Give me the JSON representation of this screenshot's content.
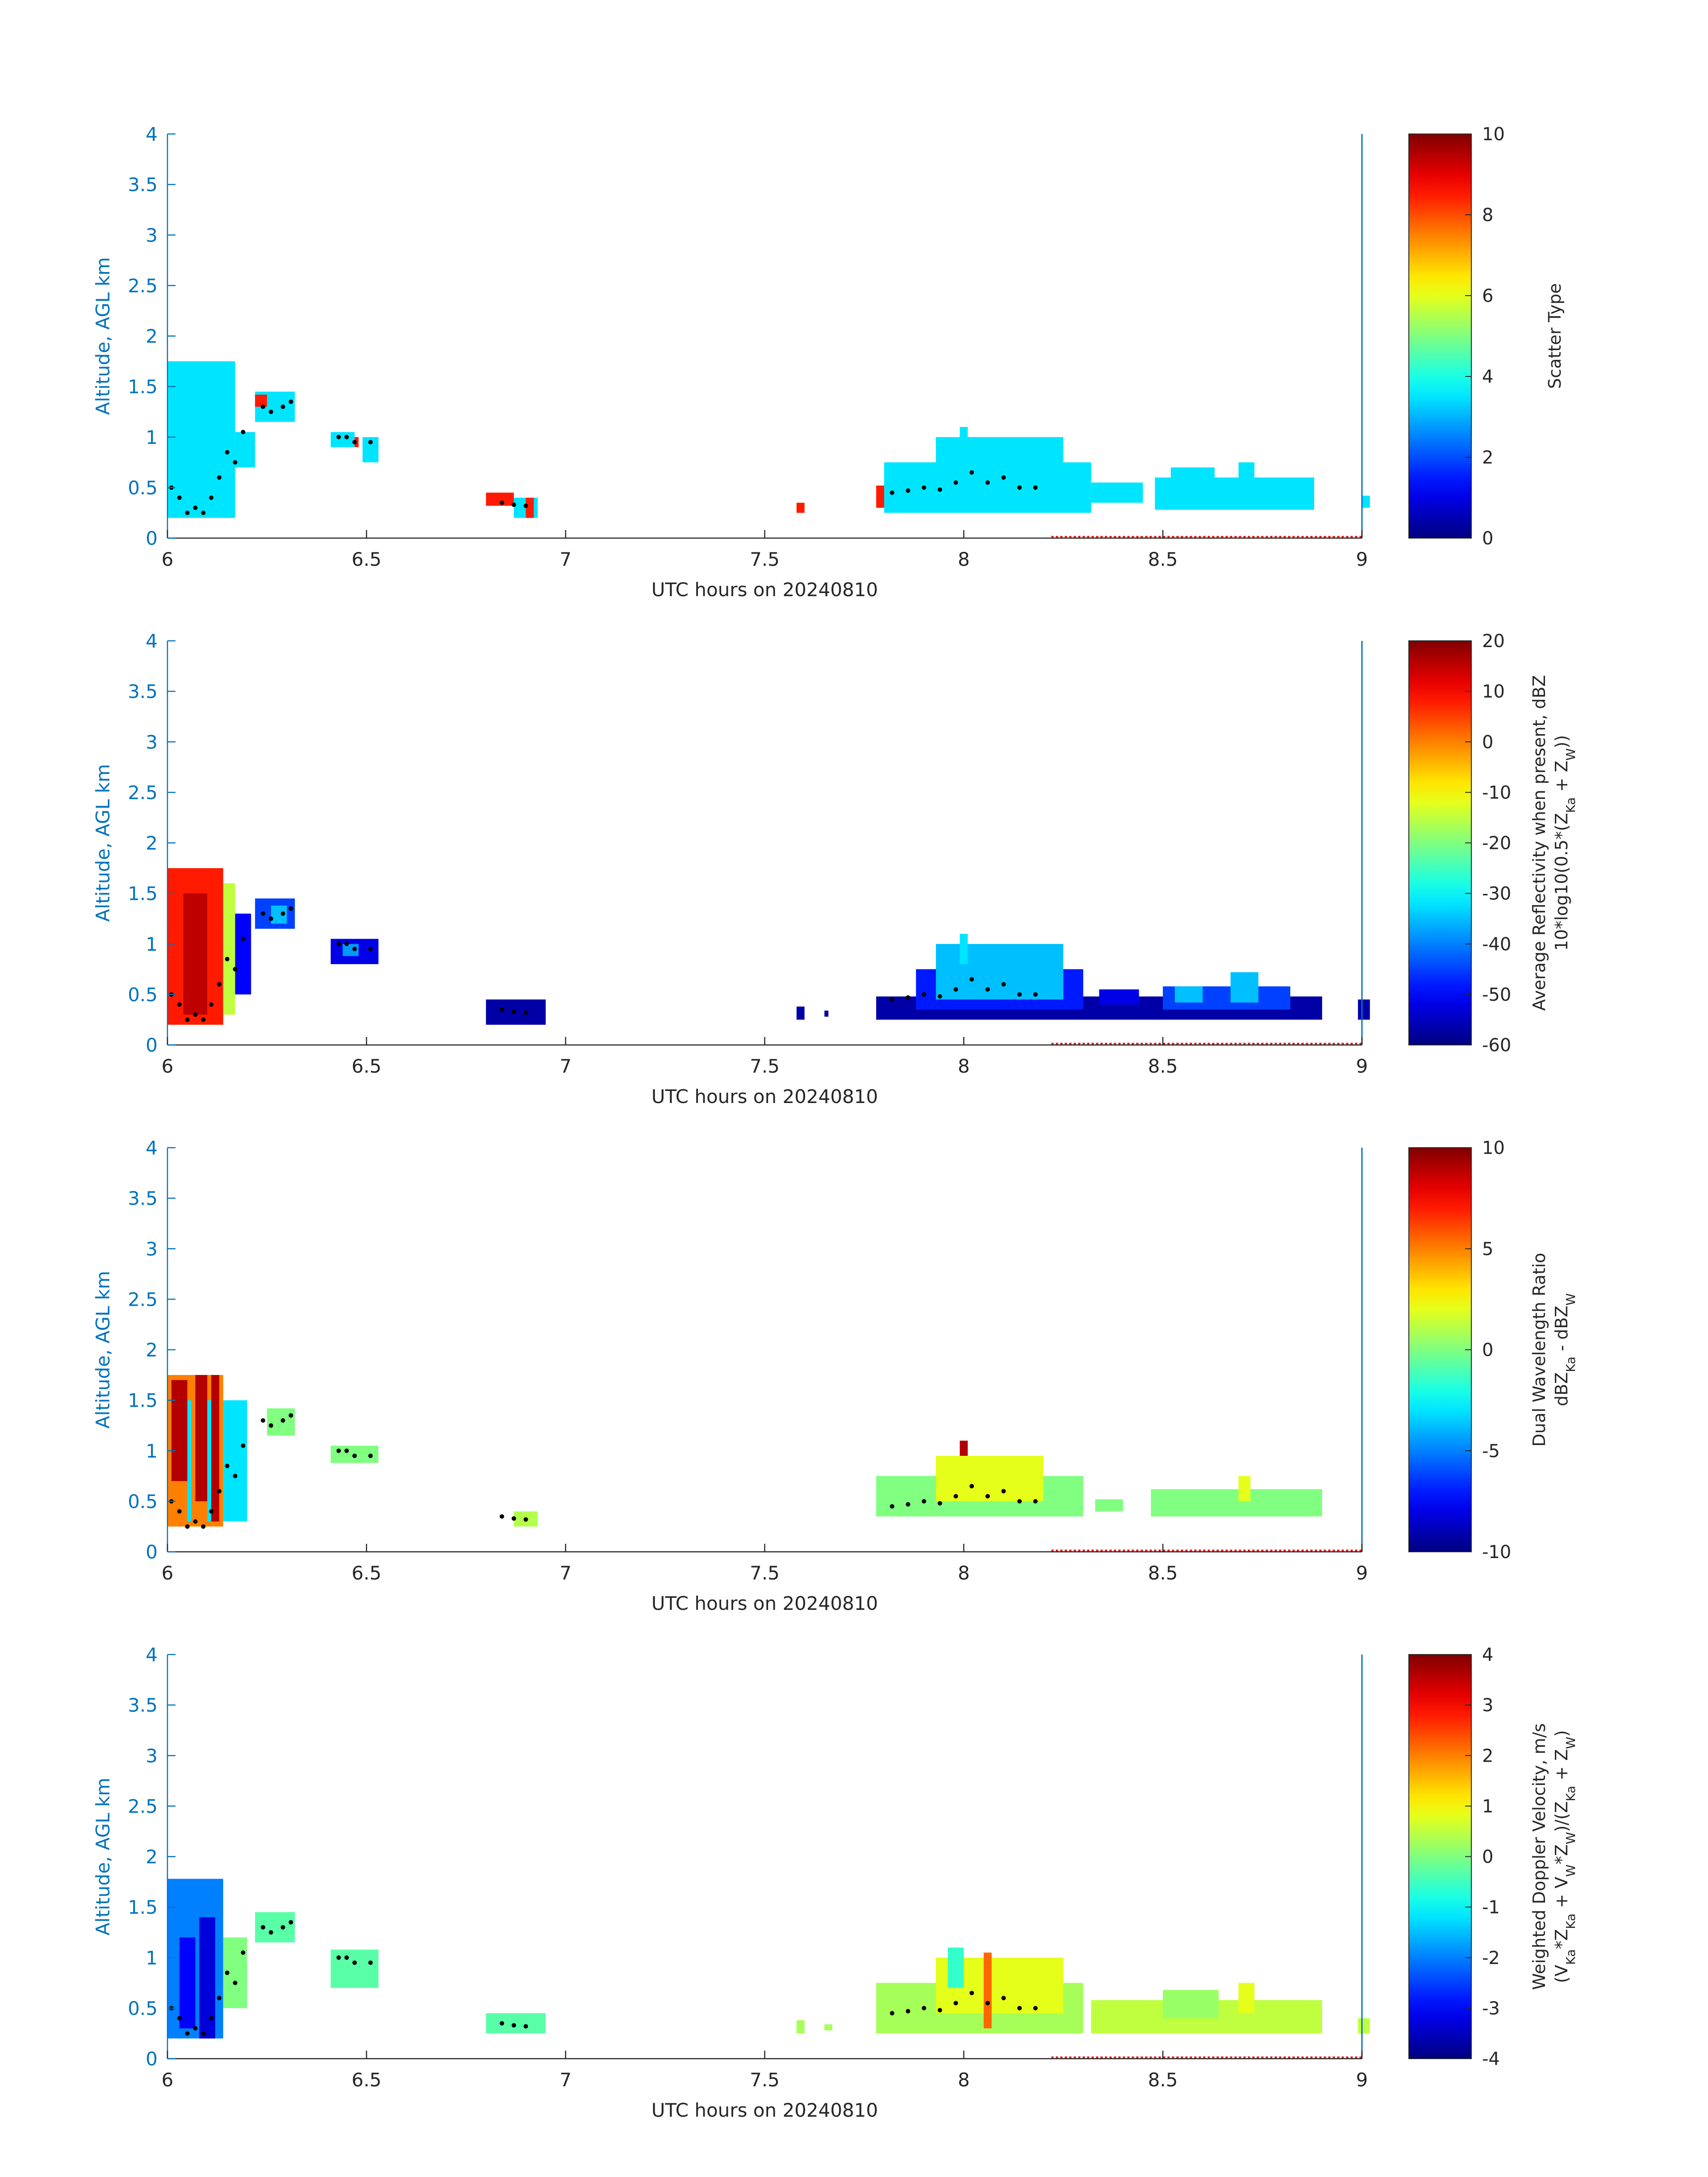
{
  "figure": {
    "date": "20240810",
    "shared_x_label": "UTC hours on 20240810",
    "shared_y_label": "Altitude, AGL km",
    "colors": {
      "axis_blue": "#0072BD",
      "text_dark": "#262626",
      "reference_line": "#0072BD",
      "red_marker": "#e41a1c",
      "black_dots": "#000000"
    }
  },
  "chart_data": [
    {
      "type": "heatmap",
      "title": "",
      "xlabel": "UTC hours on 20240810",
      "ylabel": "Altitude, AGL km",
      "xlim": [
        6,
        9
      ],
      "ylim": [
        0,
        4
      ],
      "x_ticks": [
        "6",
        "6.5",
        "7",
        "7.5",
        "8",
        "8.5",
        "9"
      ],
      "y_ticks": [
        "0",
        "0.5",
        "1",
        "1.5",
        "2",
        "2.5",
        "3",
        "3.5",
        "4"
      ],
      "colorbar": {
        "label": "Scatter Type",
        "label_line2": "",
        "range": [
          0,
          10
        ],
        "ticks": [
          "10",
          "8",
          "6",
          "4",
          "2",
          "0"
        ]
      },
      "field": "scatter_type",
      "regions": [
        {
          "x0": 6.0,
          "x1": 6.17,
          "y0": 0.2,
          "y1": 1.75,
          "value": 3.5
        },
        {
          "x0": 6.17,
          "x1": 6.22,
          "y0": 0.7,
          "y1": 1.05,
          "value": 3.5
        },
        {
          "x0": 6.22,
          "x1": 6.32,
          "y0": 1.15,
          "y1": 1.45,
          "value": 3.5
        },
        {
          "x0": 6.22,
          "x1": 6.25,
          "y0": 1.3,
          "y1": 1.42,
          "value": 8.5
        },
        {
          "x0": 6.41,
          "x1": 6.47,
          "y0": 0.9,
          "y1": 1.05,
          "value": 3.5
        },
        {
          "x0": 6.47,
          "x1": 6.48,
          "y0": 0.9,
          "y1": 1.0,
          "value": 8.5
        },
        {
          "x0": 6.49,
          "x1": 6.53,
          "y0": 0.75,
          "y1": 1.0,
          "value": 3.5
        },
        {
          "x0": 6.8,
          "x1": 6.87,
          "y0": 0.32,
          "y1": 0.45,
          "value": 8.5
        },
        {
          "x0": 6.87,
          "x1": 6.93,
          "y0": 0.2,
          "y1": 0.4,
          "value": 3.5
        },
        {
          "x0": 6.9,
          "x1": 6.92,
          "y0": 0.2,
          "y1": 0.4,
          "value": 8.5
        },
        {
          "x0": 7.58,
          "x1": 7.6,
          "y0": 0.25,
          "y1": 0.35,
          "value": 8.5
        },
        {
          "x0": 7.78,
          "x1": 7.8,
          "y0": 0.3,
          "y1": 0.52,
          "value": 8.5
        },
        {
          "x0": 7.8,
          "x1": 8.32,
          "y0": 0.25,
          "y1": 0.75,
          "value": 3.5
        },
        {
          "x0": 7.93,
          "x1": 8.25,
          "y0": 0.6,
          "y1": 1.0,
          "value": 3.5
        },
        {
          "x0": 7.99,
          "x1": 8.01,
          "y0": 0.9,
          "y1": 1.1,
          "value": 3.5
        },
        {
          "x0": 8.32,
          "x1": 8.45,
          "y0": 0.35,
          "y1": 0.55,
          "value": 3.5
        },
        {
          "x0": 8.48,
          "x1": 8.88,
          "y0": 0.28,
          "y1": 0.6,
          "value": 3.5
        },
        {
          "x0": 8.52,
          "x1": 8.63,
          "y0": 0.45,
          "y1": 0.7,
          "value": 3.5
        },
        {
          "x0": 8.69,
          "x1": 8.73,
          "y0": 0.45,
          "y1": 0.75,
          "value": 3.5
        },
        {
          "x0": 9.0,
          "x1": 9.02,
          "y0": 0.3,
          "y1": 0.42,
          "value": 3.5
        }
      ]
    },
    {
      "type": "heatmap",
      "title": "",
      "xlabel": "UTC hours on 20240810",
      "ylabel": "Altitude, AGL km",
      "xlim": [
        6,
        9
      ],
      "ylim": [
        0,
        4
      ],
      "x_ticks": [
        "6",
        "6.5",
        "7",
        "7.5",
        "8",
        "8.5",
        "9"
      ],
      "y_ticks": [
        "0",
        "0.5",
        "1",
        "1.5",
        "2",
        "2.5",
        "3",
        "3.5",
        "4"
      ],
      "colorbar": {
        "label": "Average Reflectivity when present, dBZ",
        "label_line2": "10*log10(0.5*(Z_Ka + Z_W))",
        "range": [
          -60,
          20
        ],
        "ticks": [
          "20",
          "10",
          "0",
          "-10",
          "-20",
          "-30",
          "-40",
          "-50",
          "-60"
        ]
      },
      "field": "reflectivity_dBZ",
      "regions": [
        {
          "x0": 6.0,
          "x1": 6.14,
          "y0": 0.2,
          "y1": 1.75,
          "value": 8
        },
        {
          "x0": 6.04,
          "x1": 6.1,
          "y0": 0.3,
          "y1": 1.5,
          "value": 15
        },
        {
          "x0": 6.14,
          "x1": 6.17,
          "y0": 0.3,
          "y1": 1.6,
          "value": -15
        },
        {
          "x0": 6.17,
          "x1": 6.21,
          "y0": 0.5,
          "y1": 1.3,
          "value": -50
        },
        {
          "x0": 6.22,
          "x1": 6.32,
          "y0": 1.15,
          "y1": 1.45,
          "value": -45
        },
        {
          "x0": 6.26,
          "x1": 6.3,
          "y0": 1.2,
          "y1": 1.38,
          "value": -35
        },
        {
          "x0": 6.41,
          "x1": 6.53,
          "y0": 0.8,
          "y1": 1.05,
          "value": -52
        },
        {
          "x0": 6.44,
          "x1": 6.48,
          "y0": 0.88,
          "y1": 1.0,
          "value": -38
        },
        {
          "x0": 6.8,
          "x1": 6.95,
          "y0": 0.2,
          "y1": 0.45,
          "value": -57
        },
        {
          "x0": 7.58,
          "x1": 7.6,
          "y0": 0.25,
          "y1": 0.38,
          "value": -57
        },
        {
          "x0": 7.65,
          "x1": 7.66,
          "y0": 0.28,
          "y1": 0.34,
          "value": -57
        },
        {
          "x0": 7.78,
          "x1": 8.9,
          "y0": 0.25,
          "y1": 0.48,
          "value": -57
        },
        {
          "x0": 7.88,
          "x1": 8.3,
          "y0": 0.35,
          "y1": 0.75,
          "value": -48
        },
        {
          "x0": 7.93,
          "x1": 8.25,
          "y0": 0.45,
          "y1": 1.0,
          "value": -35
        },
        {
          "x0": 7.99,
          "x1": 8.01,
          "y0": 0.8,
          "y1": 1.1,
          "value": -32
        },
        {
          "x0": 8.34,
          "x1": 8.44,
          "y0": 0.4,
          "y1": 0.55,
          "value": -52
        },
        {
          "x0": 8.5,
          "x1": 8.82,
          "y0": 0.35,
          "y1": 0.58,
          "value": -45
        },
        {
          "x0": 8.53,
          "x1": 8.6,
          "y0": 0.42,
          "y1": 0.58,
          "value": -35
        },
        {
          "x0": 8.67,
          "x1": 8.74,
          "y0": 0.42,
          "y1": 0.72,
          "value": -35
        },
        {
          "x0": 8.99,
          "x1": 9.02,
          "y0": 0.25,
          "y1": 0.45,
          "value": -57
        }
      ]
    },
    {
      "type": "heatmap",
      "title": "",
      "xlabel": "UTC hours on 20240810",
      "ylabel": "Altitude, AGL km",
      "xlim": [
        6,
        9
      ],
      "ylim": [
        0,
        4
      ],
      "x_ticks": [
        "6",
        "6.5",
        "7",
        "7.5",
        "8",
        "8.5",
        "9"
      ],
      "y_ticks": [
        "0",
        "0.5",
        "1",
        "1.5",
        "2",
        "2.5",
        "3",
        "3.5",
        "4"
      ],
      "colorbar": {
        "label": "Dual Wavelength Ratio",
        "label_line2": "dBZ_Ka - dBZ_W",
        "range": [
          -10,
          10
        ],
        "ticks": [
          "10",
          "5",
          "0",
          "-5",
          "-10"
        ]
      },
      "field": "dual_wavelength_ratio",
      "regions": [
        {
          "x0": 6.0,
          "x1": 6.14,
          "y0": 0.25,
          "y1": 1.75,
          "value": 5
        },
        {
          "x0": 6.01,
          "x1": 6.05,
          "y0": 0.7,
          "y1": 1.7,
          "value": 9
        },
        {
          "x0": 6.07,
          "x1": 6.1,
          "y0": 0.5,
          "y1": 1.75,
          "value": 9
        },
        {
          "x0": 6.11,
          "x1": 6.13,
          "y0": 0.3,
          "y1": 1.75,
          "value": 9
        },
        {
          "x0": 6.05,
          "x1": 6.06,
          "y0": 0.3,
          "y1": 1.5,
          "value": -3
        },
        {
          "x0": 6.1,
          "x1": 6.11,
          "y0": 0.3,
          "y1": 1.5,
          "value": -3
        },
        {
          "x0": 6.14,
          "x1": 6.2,
          "y0": 0.3,
          "y1": 1.5,
          "value": -3
        },
        {
          "x0": 6.25,
          "x1": 6.32,
          "y0": 1.15,
          "y1": 1.42,
          "value": 0
        },
        {
          "x0": 6.41,
          "x1": 6.53,
          "y0": 0.88,
          "y1": 1.05,
          "value": 0
        },
        {
          "x0": 6.87,
          "x1": 6.93,
          "y0": 0.25,
          "y1": 0.4,
          "value": 1
        },
        {
          "x0": 7.78,
          "x1": 8.3,
          "y0": 0.35,
          "y1": 0.75,
          "value": 0
        },
        {
          "x0": 7.93,
          "x1": 8.2,
          "y0": 0.5,
          "y1": 0.95,
          "value": 2
        },
        {
          "x0": 7.99,
          "x1": 8.01,
          "y0": 0.95,
          "y1": 1.1,
          "value": 9
        },
        {
          "x0": 8.33,
          "x1": 8.4,
          "y0": 0.4,
          "y1": 0.52,
          "value": 0
        },
        {
          "x0": 8.47,
          "x1": 8.9,
          "y0": 0.35,
          "y1": 0.62,
          "value": 0
        },
        {
          "x0": 8.69,
          "x1": 8.72,
          "y0": 0.5,
          "y1": 0.75,
          "value": 2
        }
      ]
    },
    {
      "type": "heatmap",
      "title": "",
      "xlabel": "UTC hours on 20240810",
      "ylabel": "Altitude, AGL km",
      "xlim": [
        6,
        9
      ],
      "ylim": [
        0,
        4
      ],
      "x_ticks": [
        "6",
        "6.5",
        "7",
        "7.5",
        "8",
        "8.5",
        "9"
      ],
      "y_ticks": [
        "0",
        "0.5",
        "1",
        "1.5",
        "2",
        "2.5",
        "3",
        "3.5",
        "4"
      ],
      "colorbar": {
        "label": "Weighted Doppler Velocity, m/s",
        "label_line2": "(V_Ka*Z_Ka + V_W*Z_W)/(Z_Ka + Z_W)",
        "range": [
          -4,
          4
        ],
        "ticks": [
          "4",
          "3",
          "2",
          "1",
          "0",
          "-1",
          "-2",
          "-3",
          "-4"
        ]
      },
      "field": "weighted_doppler_velocity_mps",
      "regions": [
        {
          "x0": 6.0,
          "x1": 6.14,
          "y0": 0.2,
          "y1": 1.78,
          "value": -2
        },
        {
          "x0": 6.03,
          "x1": 6.07,
          "y0": 0.3,
          "y1": 1.2,
          "value": -3
        },
        {
          "x0": 6.08,
          "x1": 6.12,
          "y0": 0.2,
          "y1": 1.4,
          "value": -3.3
        },
        {
          "x0": 6.14,
          "x1": 6.2,
          "y0": 0.5,
          "y1": 1.2,
          "value": 0
        },
        {
          "x0": 6.22,
          "x1": 6.32,
          "y0": 1.15,
          "y1": 1.45,
          "value": -0.3
        },
        {
          "x0": 6.41,
          "x1": 6.53,
          "y0": 0.7,
          "y1": 1.08,
          "value": -0.3
        },
        {
          "x0": 6.8,
          "x1": 6.95,
          "y0": 0.25,
          "y1": 0.45,
          "value": -0.3
        },
        {
          "x0": 7.58,
          "x1": 7.6,
          "y0": 0.25,
          "y1": 0.38,
          "value": 0.3
        },
        {
          "x0": 7.65,
          "x1": 7.67,
          "y0": 0.28,
          "y1": 0.34,
          "value": 0.3
        },
        {
          "x0": 7.78,
          "x1": 8.3,
          "y0": 0.25,
          "y1": 0.75,
          "value": 0.3
        },
        {
          "x0": 7.93,
          "x1": 8.25,
          "y0": 0.45,
          "y1": 1.0,
          "value": 0.8
        },
        {
          "x0": 7.96,
          "x1": 8.0,
          "y0": 0.7,
          "y1": 1.1,
          "value": -0.6
        },
        {
          "x0": 8.05,
          "x1": 8.07,
          "y0": 0.3,
          "y1": 1.05,
          "value": 2.2
        },
        {
          "x0": 8.32,
          "x1": 8.9,
          "y0": 0.25,
          "y1": 0.58,
          "value": 0.5
        },
        {
          "x0": 8.5,
          "x1": 8.64,
          "y0": 0.4,
          "y1": 0.68,
          "value": 0.2
        },
        {
          "x0": 8.69,
          "x1": 8.73,
          "y0": 0.45,
          "y1": 0.75,
          "value": 0.8
        },
        {
          "x0": 8.99,
          "x1": 9.02,
          "y0": 0.25,
          "y1": 0.4,
          "value": 0.5
        }
      ]
    }
  ],
  "overlay": {
    "cloud_base_dots": {
      "description": "black dotted trace",
      "x": [
        6.01,
        6.03,
        6.05,
        6.07,
        6.09,
        6.11,
        6.13,
        6.15,
        6.17,
        6.19,
        6.24,
        6.26,
        6.29,
        6.31,
        6.43,
        6.45,
        6.47,
        6.51,
        6.84,
        6.87,
        6.9,
        7.82,
        7.86,
        7.9,
        7.94,
        7.98,
        8.02,
        8.06,
        8.1,
        8.14,
        8.18
      ],
      "y": [
        0.5,
        0.4,
        0.25,
        0.3,
        0.25,
        0.4,
        0.6,
        0.85,
        0.75,
        1.05,
        1.3,
        1.25,
        1.3,
        1.35,
        1.0,
        1.0,
        0.95,
        0.95,
        0.35,
        0.33,
        0.32,
        0.45,
        0.47,
        0.5,
        0.48,
        0.55,
        0.65,
        0.55,
        0.6,
        0.5,
        0.5
      ]
    },
    "red_marker_segment": {
      "x0": 8.22,
      "x1": 9.0,
      "y": 0
    },
    "vertical_reference_line_x": 9.0
  }
}
